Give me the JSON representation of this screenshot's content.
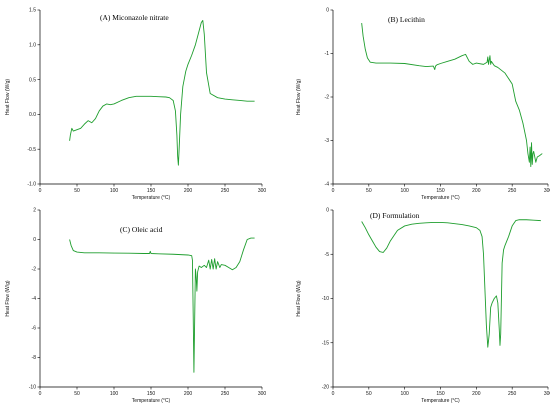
{
  "chart_data": [
    {
      "type": "line",
      "title": "(A) Miconazole nitrate",
      "xlabel": "Temperature (°C)",
      "ylabel": "Heat Flow (W/g)",
      "xlim": [
        0,
        300
      ],
      "ylim": [
        -1.0,
        1.5
      ],
      "xticks": [
        0,
        50,
        100,
        150,
        200,
        250,
        300
      ],
      "yticks": [
        -1.0,
        -0.5,
        0.0,
        0.5,
        1.0,
        1.5
      ],
      "xtick_labels": [
        "0",
        "50",
        "100",
        "150",
        "200",
        "250",
        "300"
      ],
      "ytick_labels": [
        "-1.0",
        "-0.5",
        "0.0",
        "0.5",
        "1.0",
        "1.5"
      ],
      "color": "#1f9e2e",
      "series": [
        {
          "x": [
            40,
            41,
            43,
            45,
            50,
            55,
            60,
            65,
            70,
            75,
            80,
            85,
            90,
            95,
            100,
            110,
            120,
            130,
            140,
            150,
            160,
            170,
            175,
            180,
            183,
            185,
            186,
            187,
            188,
            190,
            193,
            197,
            200,
            205,
            210,
            215,
            218,
            220,
            222,
            225,
            230,
            240,
            250,
            260,
            270,
            280,
            290
          ],
          "y": [
            -0.38,
            -0.3,
            -0.2,
            -0.24,
            -0.22,
            -0.2,
            -0.14,
            -0.09,
            -0.12,
            -0.06,
            0.05,
            0.12,
            0.15,
            0.14,
            0.15,
            0.2,
            0.24,
            0.26,
            0.26,
            0.26,
            0.255,
            0.25,
            0.24,
            0.2,
            0.05,
            -0.3,
            -0.6,
            -0.73,
            -0.5,
            0.0,
            0.4,
            0.62,
            0.72,
            0.85,
            1.0,
            1.2,
            1.32,
            1.35,
            1.15,
            0.6,
            0.3,
            0.24,
            0.22,
            0.21,
            0.2,
            0.19,
            0.19
          ]
        }
      ]
    },
    {
      "type": "line",
      "title": "(B) Lecithin",
      "xlabel": "Temperature (°C)",
      "ylabel": "Heat Flow (W/g)",
      "xlim": [
        0,
        300
      ],
      "ylim": [
        -4,
        0
      ],
      "xticks": [
        0,
        50,
        100,
        150,
        200,
        250,
        300
      ],
      "yticks": [
        -4,
        -3,
        -2,
        -1,
        0
      ],
      "xtick_labels": [
        "0",
        "50",
        "100",
        "150",
        "200",
        "250",
        "300"
      ],
      "ytick_labels": [
        "-4",
        "-3",
        "-2",
        "-1",
        "0"
      ],
      "color": "#1f9e2e",
      "series": [
        {
          "x": [
            40,
            42,
            45,
            48,
            52,
            60,
            80,
            100,
            120,
            130,
            140,
            142,
            143,
            145,
            150,
            160,
            170,
            180,
            185,
            190,
            195,
            200,
            210,
            215,
            216,
            217,
            219,
            220,
            221,
            225,
            230,
            240,
            250,
            255,
            260,
            265,
            270,
            272,
            274,
            275,
            276,
            277,
            278,
            279,
            280,
            283,
            285,
            288,
            292
          ],
          "y": [
            -0.3,
            -0.6,
            -0.9,
            -1.1,
            -1.2,
            -1.22,
            -1.22,
            -1.23,
            -1.28,
            -1.3,
            -1.29,
            -1.37,
            -1.29,
            -1.26,
            -1.23,
            -1.18,
            -1.13,
            -1.05,
            -1.02,
            -1.18,
            -1.25,
            -1.22,
            -1.25,
            -1.2,
            -1.08,
            -1.25,
            -1.05,
            -1.25,
            -1.18,
            -1.28,
            -1.32,
            -1.45,
            -1.7,
            -2.1,
            -2.3,
            -2.6,
            -3.0,
            -3.3,
            -3.5,
            -3.15,
            -3.6,
            -3.05,
            -3.55,
            -3.3,
            -3.25,
            -3.5,
            -3.38,
            -3.35,
            -3.3
          ]
        }
      ]
    },
    {
      "type": "line",
      "title": "(C) Oleic acid",
      "xlabel": "Temperature (°C)",
      "ylabel": "Heat Flow (W/g)",
      "xlim": [
        0,
        300
      ],
      "ylim": [
        -10,
        2
      ],
      "xticks": [
        0,
        50,
        100,
        150,
        200,
        250,
        300
      ],
      "yticks": [
        -10,
        -8,
        -6,
        -4,
        -2,
        0,
        2
      ],
      "xtick_labels": [
        "0",
        "50",
        "100",
        "150",
        "200",
        "250",
        "300"
      ],
      "ytick_labels": [
        "-10",
        "-8",
        "-6",
        "-4",
        "-2",
        "0",
        "2"
      ],
      "color": "#1f9e2e",
      "series": [
        {
          "x": [
            40,
            42,
            45,
            50,
            60,
            80,
            100,
            120,
            140,
            148,
            149,
            150,
            160,
            180,
            200,
            205,
            206,
            207,
            208,
            209,
            210,
            211,
            212,
            213,
            215,
            218,
            222,
            225,
            228,
            230,
            232,
            234,
            236,
            238,
            240,
            243,
            245,
            250,
            255,
            260,
            265,
            270,
            275,
            280,
            285,
            290
          ],
          "y": [
            0.0,
            -0.4,
            -0.75,
            -0.85,
            -0.9,
            -0.9,
            -0.92,
            -0.93,
            -0.95,
            -0.95,
            -0.8,
            -0.95,
            -0.97,
            -1.0,
            -1.05,
            -1.1,
            -1.4,
            -5.0,
            -9.0,
            -5.5,
            -2.0,
            -2.5,
            -3.5,
            -2.2,
            -1.8,
            -1.9,
            -1.75,
            -1.9,
            -1.4,
            -2.0,
            -1.35,
            -2.0,
            -1.3,
            -2.0,
            -1.5,
            -1.9,
            -1.7,
            -1.75,
            -1.9,
            -2.05,
            -1.9,
            -1.5,
            -0.7,
            0.0,
            0.1,
            0.1
          ]
        }
      ]
    },
    {
      "type": "line",
      "title": "(D) Formulation",
      "xlabel": "Temperature (°C)",
      "ylabel": "Heat Flow (W/g)",
      "xlim": [
        0,
        300
      ],
      "ylim": [
        -20,
        0
      ],
      "xticks": [
        0,
        50,
        100,
        150,
        200,
        250,
        300
      ],
      "yticks": [
        -20,
        -15,
        -10,
        -5,
        0
      ],
      "xtick_labels": [
        "0",
        "50",
        "100",
        "150",
        "200",
        "250",
        "300"
      ],
      "ytick_labels": [
        "-20",
        "-15",
        "-10",
        "-5",
        "0"
      ],
      "color": "#1f9e2e",
      "series": [
        {
          "x": [
            40,
            45,
            50,
            55,
            60,
            65,
            70,
            75,
            80,
            85,
            90,
            100,
            110,
            120,
            130,
            140,
            150,
            160,
            170,
            180,
            190,
            200,
            205,
            208,
            210,
            212,
            214,
            216,
            218,
            220,
            222,
            225,
            228,
            230,
            232,
            233,
            234,
            235,
            236,
            238,
            240,
            245,
            250,
            255,
            260,
            270,
            280,
            290
          ],
          "y": [
            -1.3,
            -2.0,
            -2.8,
            -3.5,
            -4.2,
            -4.7,
            -4.8,
            -4.3,
            -3.5,
            -2.9,
            -2.3,
            -1.8,
            -1.6,
            -1.5,
            -1.45,
            -1.4,
            -1.4,
            -1.45,
            -1.55,
            -1.65,
            -1.8,
            -2.0,
            -2.3,
            -3.0,
            -5.0,
            -9.0,
            -13.0,
            -15.5,
            -14.0,
            -11.0,
            -10.5,
            -10.0,
            -9.7,
            -10.5,
            -13.5,
            -15.3,
            -14.0,
            -10.0,
            -6.0,
            -4.5,
            -4.0,
            -3.0,
            -1.8,
            -1.2,
            -1.1,
            -1.1,
            -1.15,
            -1.2
          ]
        }
      ]
    }
  ]
}
